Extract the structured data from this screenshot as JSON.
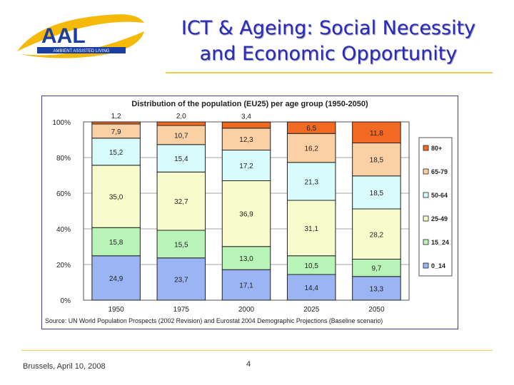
{
  "slide": {
    "title_line1": "ICT & Ageing: Social Necessity",
    "title_line2": "and Economic Opportunity",
    "footer_left": "Brussels, April 10, 2008",
    "page_number": "4"
  },
  "logo": {
    "text": "AAL",
    "subtitle": "AMBIENT ASSISTED LIVING",
    "colors": {
      "letters": "#1a3fa0",
      "swoosh": "#f5b90a",
      "band": "#1a3fa0"
    }
  },
  "chart_data": {
    "type": "bar",
    "stacked": true,
    "title": "Distribution of the population (EU25) per age group (1950-2050)",
    "source": "Source: UN World Population Prospects (2002 Revision) and Eurostat 2004 Demographic Projections (Baseline scenario)",
    "categories": [
      "1950",
      "1975",
      "2000",
      "2025",
      "2050"
    ],
    "ylim": [
      0,
      100
    ],
    "yticks": [
      "0%",
      "20%",
      "40%",
      "60%",
      "80%",
      "100%"
    ],
    "legend_position": "right",
    "series": [
      {
        "name": "0_14",
        "color": "#9ab4f4",
        "values": [
          24.9,
          23.7,
          17.1,
          14.4,
          13.3
        ],
        "labels": [
          "24,9",
          "23,7",
          "17,1",
          "14,4",
          "13,3"
        ]
      },
      {
        "name": "15_24",
        "color": "#b8f4b8",
        "values": [
          15.8,
          15.5,
          13.0,
          10.5,
          9.7
        ],
        "labels": [
          "15,8",
          "15,5",
          "13,0",
          "10,5",
          "9,7"
        ]
      },
      {
        "name": "25-49",
        "color": "#f8fccc",
        "values": [
          35.0,
          32.7,
          36.9,
          31.1,
          28.2
        ],
        "labels": [
          "35,0",
          "32,7",
          "36,9",
          "31,1",
          "28,2"
        ]
      },
      {
        "name": "50-64",
        "color": "#d8fcfc",
        "values": [
          15.2,
          15.4,
          17.2,
          21.3,
          18.5
        ],
        "labels": [
          "15,2",
          "15,4",
          "17,2",
          "21,3",
          "18,5"
        ]
      },
      {
        "name": "65-79",
        "color": "#fad0a4",
        "values": [
          7.9,
          10.7,
          12.3,
          16.2,
          18.5
        ],
        "labels": [
          "7,9",
          "10,7",
          "12,3",
          "16,2",
          "18,5"
        ]
      },
      {
        "name": "80+",
        "color": "#f26a22",
        "values": [
          1.2,
          2.0,
          3.4,
          6.5,
          11.8
        ],
        "labels": [
          "1,2",
          "2,0",
          "3,4",
          "6,5",
          "11,8"
        ]
      }
    ]
  }
}
